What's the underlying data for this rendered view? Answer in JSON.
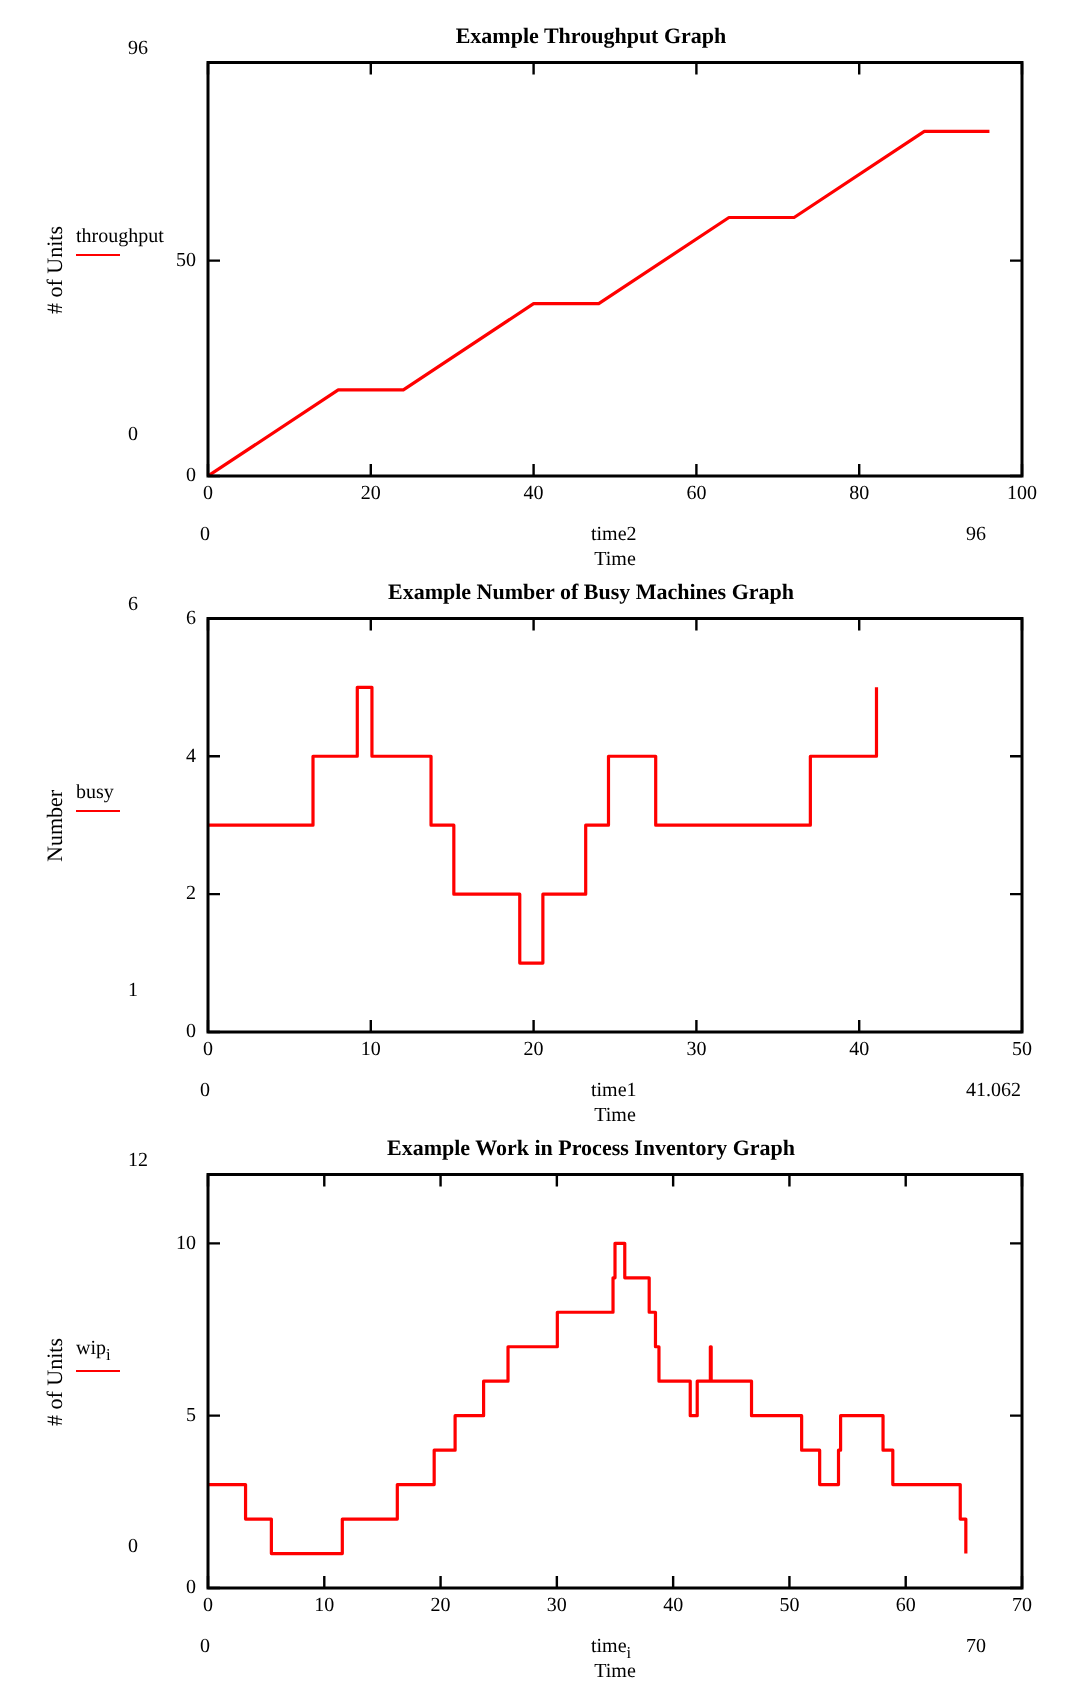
{
  "chart_data": [
    {
      "type": "line",
      "title": "Example Throughput Graph",
      "xlabel": "Time",
      "ylabel": "# of Units",
      "legend": "left",
      "x": [
        0,
        16,
        24,
        40,
        48,
        64,
        72,
        88,
        96
      ],
      "series": [
        {
          "name": "throughput",
          "color": "#ff0000",
          "values": [
            0,
            20,
            20,
            40,
            40,
            60,
            60,
            80,
            80
          ]
        }
      ],
      "xlim": [
        0,
        100
      ],
      "xticks": [
        0,
        20,
        40,
        60,
        80,
        100
      ],
      "ylim": [
        0,
        96
      ],
      "yticks": [
        0,
        50
      ],
      "annotations": [
        "96",
        "0",
        "0",
        "time2",
        "96"
      ]
    },
    {
      "type": "step",
      "title": "Example Number of Busy Machines Graph",
      "xlabel": "Time",
      "ylabel": "Number",
      "legend": "left",
      "x": [
        0,
        6.45,
        9.17,
        10.07,
        13.7,
        15.1,
        19.15,
        20.57,
        23.2,
        24.6,
        27.5,
        37.0,
        41.062
      ],
      "series": [
        {
          "name": "busy",
          "color": "#ff0000",
          "values": [
            3,
            4,
            5,
            4,
            3,
            2,
            1,
            2,
            3,
            4,
            3,
            4,
            5
          ]
        }
      ],
      "xlim": [
        0,
        50
      ],
      "xticks": [
        0,
        10,
        20,
        30,
        40,
        50
      ],
      "ylim": [
        0,
        6
      ],
      "yticks": [
        0,
        2,
        4,
        6
      ],
      "annotations": [
        "6",
        "1",
        "0",
        "time1",
        "41.062"
      ]
    },
    {
      "type": "step",
      "title": "Example Work in Process Inventory Graph",
      "xlabel": "Time",
      "ylabel": "# of Units",
      "legend": "left",
      "x": [
        0,
        3.23,
        5.45,
        11.55,
        16.28,
        19.45,
        21.25,
        23.7,
        25.8,
        30.04,
        34.83,
        35.0,
        35.84,
        37.94,
        38.48,
        38.78,
        41.47,
        42.07,
        43.2,
        43.27,
        46.74,
        51.05,
        52.6,
        54.22,
        54.4,
        58.05,
        58.89,
        64.69,
        65.17
      ],
      "series": [
        {
          "name": "wip$_{i}$",
          "color": "#ff0000",
          "values": [
            3,
            2,
            1,
            2,
            3,
            4,
            5,
            6,
            7,
            8,
            9,
            10,
            9,
            8,
            7,
            6,
            5,
            6,
            7,
            6,
            5,
            4,
            3,
            4,
            5,
            4,
            3,
            2,
            1
          ]
        }
      ],
      "xlim": [
        0,
        70
      ],
      "xticks": [
        0,
        10,
        20,
        30,
        40,
        50,
        60,
        70
      ],
      "ylim": [
        0,
        12
      ],
      "yticks": [
        0,
        5,
        10
      ],
      "annotations": [
        "12",
        "0",
        "0",
        "time$_{i}$",
        "70"
      ]
    }
  ]
}
